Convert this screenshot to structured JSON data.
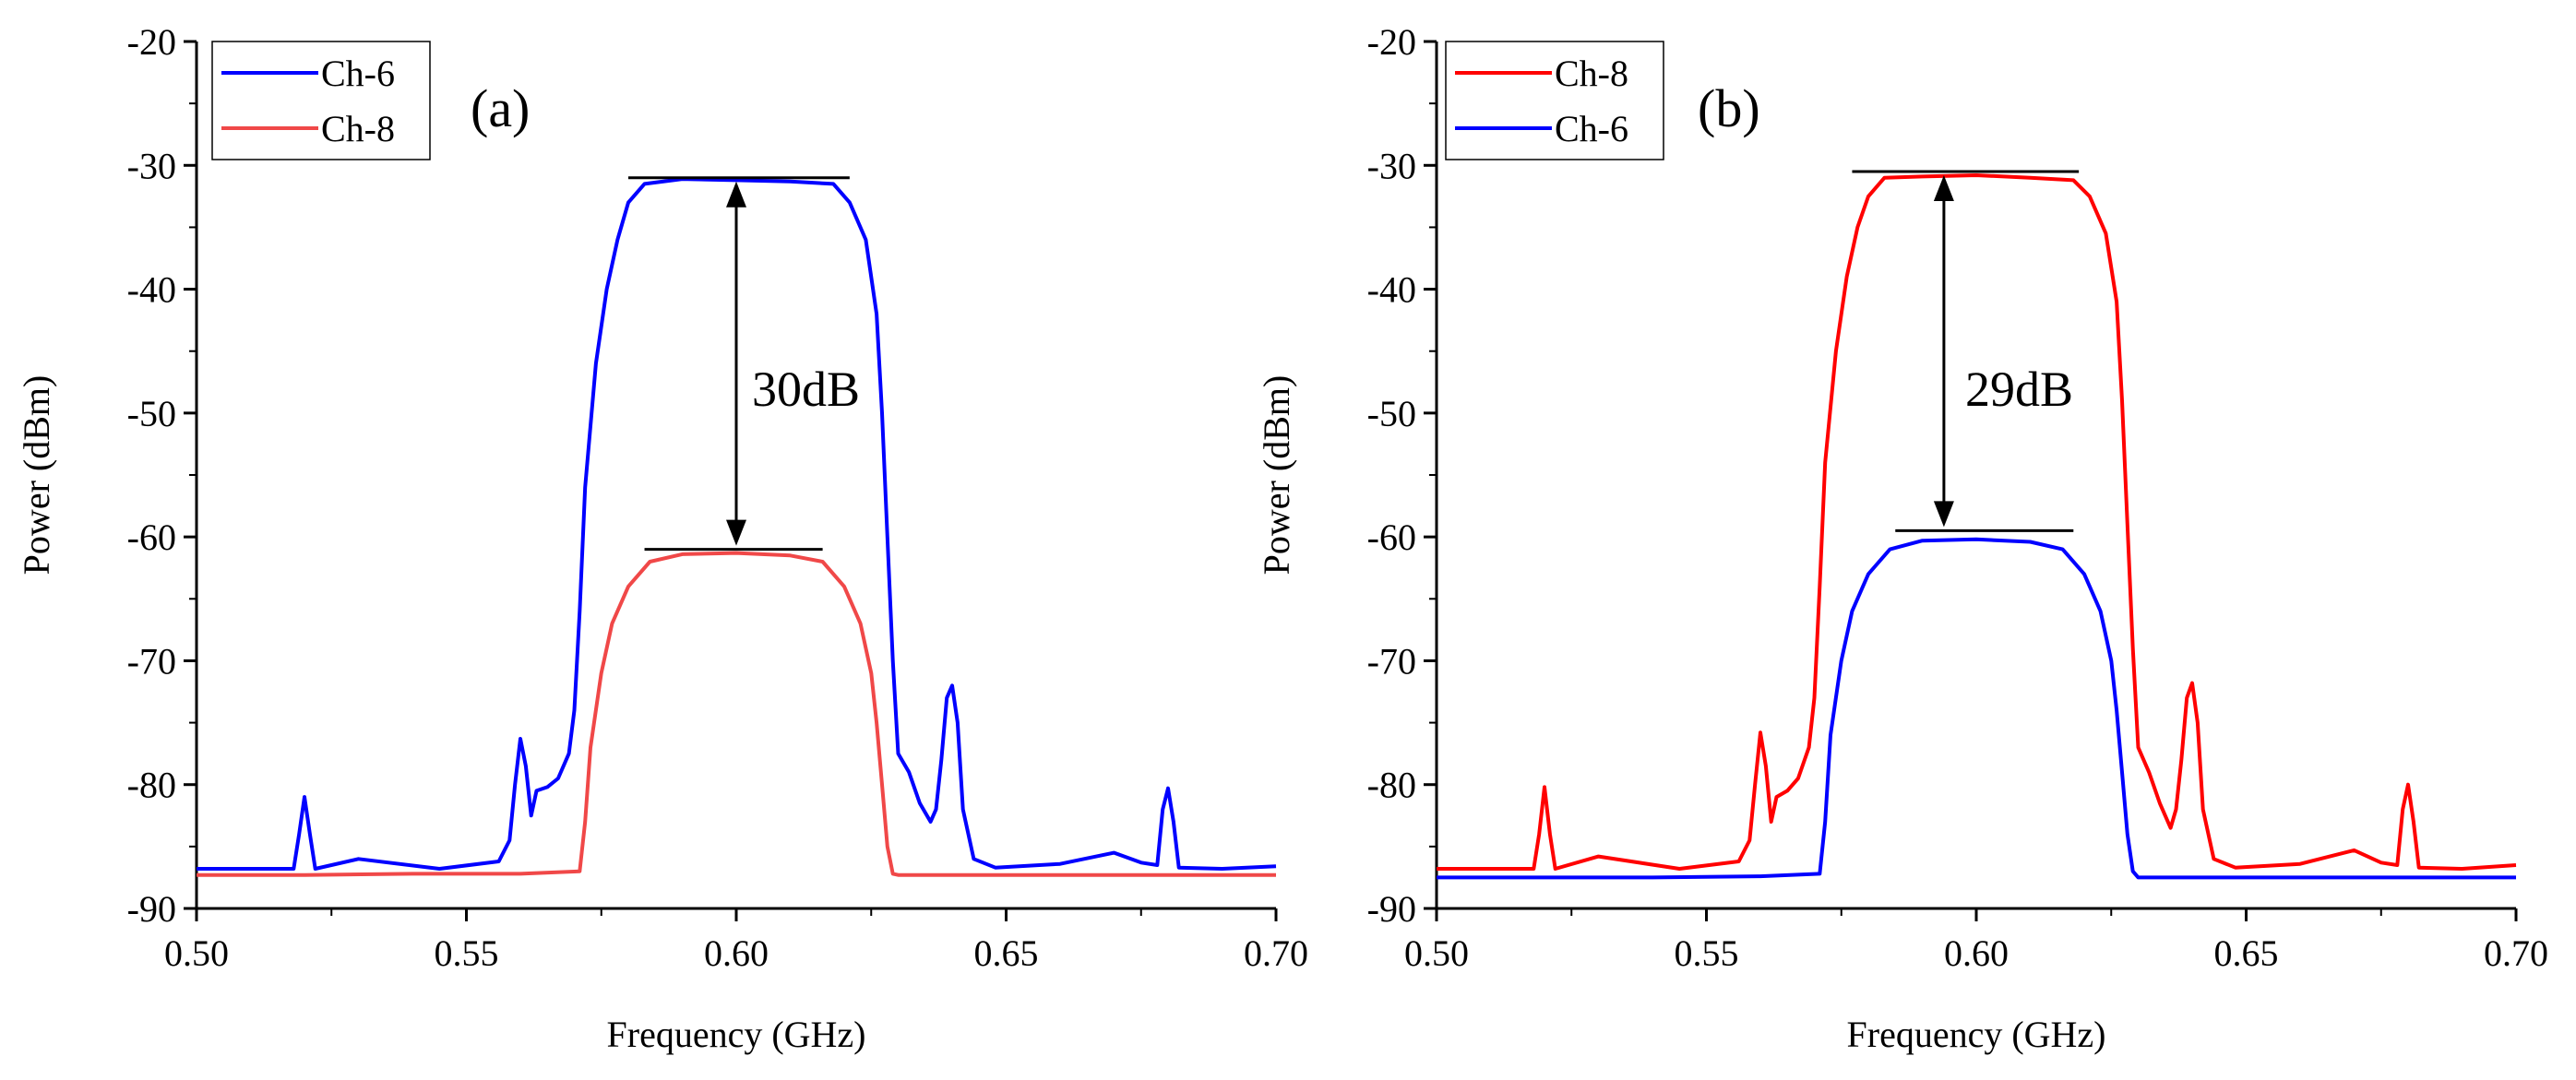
{
  "chart_data": [
    {
      "type": "line",
      "panel_label": "(a)",
      "xlabel": "Frequency (GHz)",
      "ylabel": "Power (dBm)",
      "xlim": [
        0.5,
        0.7
      ],
      "ylim": [
        -90,
        -20
      ],
      "xticks": [
        "0.50",
        "0.55",
        "0.60",
        "0.65",
        "0.70"
      ],
      "yticks": [
        "-20",
        "-30",
        "-40",
        "-50",
        "-60",
        "-70",
        "-80",
        "-90"
      ],
      "legend_position": "top-left",
      "annotation": {
        "text": "30dB",
        "x": 0.6,
        "y_top": -31,
        "y_bottom": -61,
        "top_line": [
          0.58,
          0.621
        ],
        "bottom_line": [
          0.583,
          0.616
        ]
      },
      "series": [
        {
          "name": "Ch-6",
          "color": "#0000ff",
          "x": [
            0.5,
            0.518,
            0.519,
            0.52,
            0.521,
            0.522,
            0.53,
            0.545,
            0.556,
            0.558,
            0.559,
            0.56,
            0.561,
            0.562,
            0.563,
            0.565,
            0.567,
            0.569,
            0.57,
            0.571,
            0.572,
            0.574,
            0.576,
            0.578,
            0.58,
            0.583,
            0.59,
            0.6,
            0.61,
            0.618,
            0.621,
            0.624,
            0.626,
            0.627,
            0.628,
            0.629,
            0.63,
            0.632,
            0.634,
            0.636,
            0.637,
            0.638,
            0.639,
            0.64,
            0.641,
            0.642,
            0.644,
            0.648,
            0.66,
            0.67,
            0.675,
            0.678,
            0.679,
            0.68,
            0.681,
            0.682,
            0.69,
            0.7
          ],
          "y": [
            -86.8,
            -86.8,
            -84,
            -81,
            -84,
            -86.8,
            -86,
            -86.8,
            -86.2,
            -84.5,
            -80,
            -76.3,
            -78.5,
            -82.5,
            -80.5,
            -80.2,
            -79.5,
            -77.5,
            -74,
            -66,
            -56,
            -46,
            -40,
            -36,
            -33,
            -31.5,
            -31.1,
            -31.2,
            -31.3,
            -31.5,
            -33,
            -36,
            -42,
            -50,
            -60,
            -70,
            -77.5,
            -79,
            -81.5,
            -83,
            -82,
            -78,
            -73,
            -72,
            -75,
            -82,
            -86,
            -86.7,
            -86.4,
            -85.5,
            -86.3,
            -86.5,
            -82,
            -80.3,
            -83,
            -86.7,
            -86.8,
            -86.6
          ]
        },
        {
          "name": "Ch-8",
          "color": "#f04848",
          "x": [
            0.5,
            0.52,
            0.54,
            0.56,
            0.571,
            0.572,
            0.573,
            0.575,
            0.577,
            0.58,
            0.584,
            0.59,
            0.6,
            0.61,
            0.616,
            0.62,
            0.623,
            0.625,
            0.626,
            0.627,
            0.628,
            0.629,
            0.63,
            0.64,
            0.66,
            0.68,
            0.7
          ],
          "y": [
            -87.3,
            -87.3,
            -87.2,
            -87.2,
            -87,
            -83,
            -77,
            -71,
            -67,
            -64,
            -62,
            -61.4,
            -61.3,
            -61.5,
            -62,
            -64,
            -67,
            -71,
            -75,
            -80,
            -85,
            -87.2,
            -87.3,
            -87.3,
            -87.3,
            -87.3,
            -87.3
          ]
        }
      ]
    },
    {
      "type": "line",
      "panel_label": "(b)",
      "xlabel": "Frequency (GHz)",
      "ylabel": "Power (dBm)",
      "xlim": [
        0.5,
        0.7
      ],
      "ylim": [
        -90,
        -20
      ],
      "xticks": [
        "0.50",
        "0.55",
        "0.60",
        "0.65",
        "0.70"
      ],
      "yticks": [
        "-20",
        "-30",
        "-40",
        "-50",
        "-60",
        "-70",
        "-80",
        "-90"
      ],
      "legend_position": "top-left",
      "annotation": {
        "text": "29dB",
        "x": 0.594,
        "y_top": -30.5,
        "y_bottom": -59.5,
        "top_line": [
          0.577,
          0.619
        ],
        "bottom_line": [
          0.585,
          0.618
        ]
      },
      "series": [
        {
          "name": "Ch-8",
          "color": "#ff0000",
          "x": [
            0.5,
            0.518,
            0.519,
            0.52,
            0.521,
            0.522,
            0.53,
            0.545,
            0.556,
            0.558,
            0.559,
            0.56,
            0.561,
            0.562,
            0.563,
            0.565,
            0.567,
            0.569,
            0.57,
            0.571,
            0.572,
            0.574,
            0.576,
            0.578,
            0.58,
            0.583,
            0.59,
            0.6,
            0.61,
            0.618,
            0.621,
            0.624,
            0.626,
            0.627,
            0.628,
            0.629,
            0.63,
            0.632,
            0.634,
            0.636,
            0.637,
            0.638,
            0.639,
            0.64,
            0.641,
            0.642,
            0.644,
            0.648,
            0.66,
            0.67,
            0.675,
            0.678,
            0.679,
            0.68,
            0.681,
            0.682,
            0.69,
            0.7
          ],
          "y": [
            -86.8,
            -86.8,
            -84,
            -80.2,
            -84,
            -86.8,
            -85.8,
            -86.8,
            -86.2,
            -84.5,
            -80,
            -75.8,
            -78.5,
            -83,
            -81,
            -80.5,
            -79.5,
            -77,
            -73,
            -64,
            -54,
            -45,
            -39,
            -35,
            -32.5,
            -31,
            -30.9,
            -30.8,
            -31,
            -31.2,
            -32.5,
            -35.5,
            -41,
            -49,
            -59,
            -69,
            -77,
            -79,
            -81.5,
            -83.5,
            -82,
            -78,
            -73,
            -71.8,
            -75,
            -82,
            -86,
            -86.7,
            -86.4,
            -85.3,
            -86.3,
            -86.5,
            -82,
            -80,
            -83,
            -86.7,
            -86.8,
            -86.5
          ]
        },
        {
          "name": "Ch-6",
          "color": "#0000ff",
          "x": [
            0.5,
            0.52,
            0.54,
            0.56,
            0.571,
            0.572,
            0.573,
            0.575,
            0.577,
            0.58,
            0.584,
            0.59,
            0.6,
            0.61,
            0.616,
            0.62,
            0.623,
            0.625,
            0.626,
            0.627,
            0.628,
            0.629,
            0.63,
            0.64,
            0.66,
            0.68,
            0.7
          ],
          "y": [
            -87.5,
            -87.5,
            -87.5,
            -87.4,
            -87.2,
            -83,
            -76,
            -70,
            -66,
            -63,
            -61,
            -60.3,
            -60.2,
            -60.4,
            -61,
            -63,
            -66,
            -70,
            -74,
            -79,
            -84,
            -87,
            -87.5,
            -87.5,
            -87.5,
            -87.5,
            -87.5
          ]
        }
      ]
    }
  ]
}
